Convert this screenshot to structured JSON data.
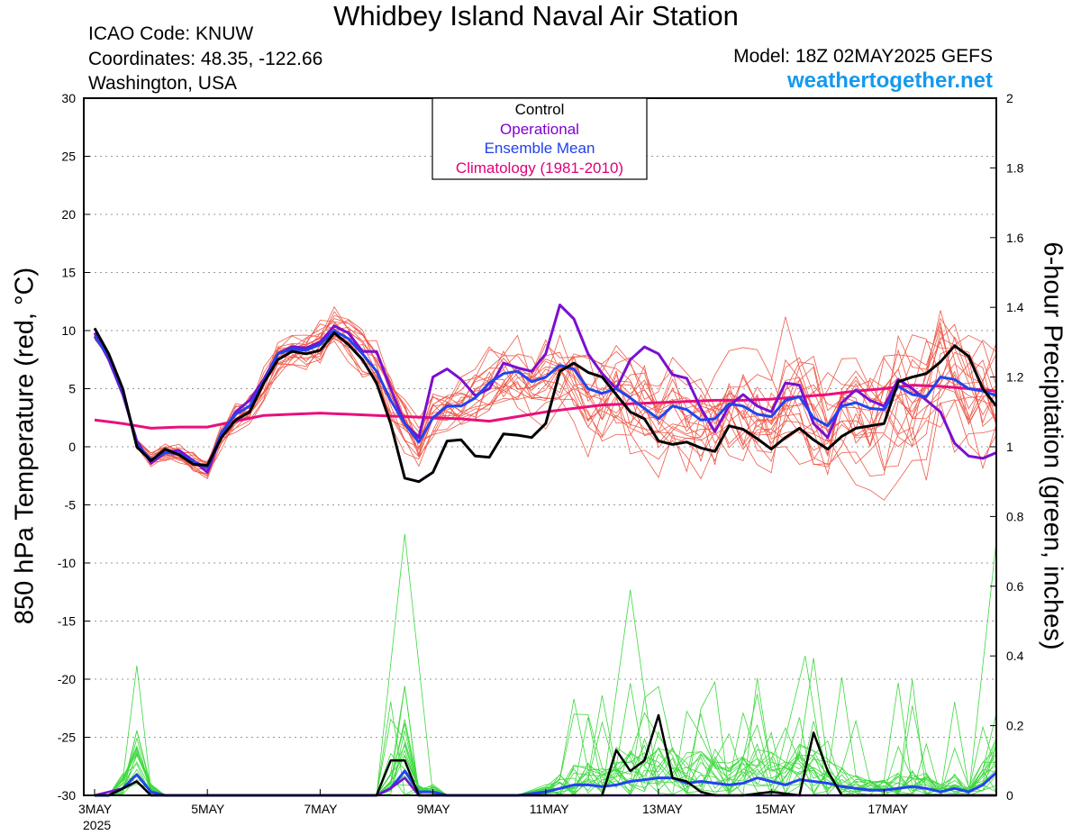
{
  "header": {
    "title": "Whidbey Island Naval Air Station",
    "icao": "ICAO Code: KNUW",
    "coords": "Coordinates: 48.35, -122.66",
    "region": "Washington, USA",
    "model": "Model: 18Z 02MAY2025 GEFS",
    "site": "weathertogether.net"
  },
  "chart_data": {
    "type": "line",
    "ylabel_left": "850 hPa Temperature (red, °C)",
    "ylabel_right": "6-hour Precipitation (green, inches)",
    "ylim_left": [
      -30,
      30
    ],
    "ylim_right": [
      0,
      2
    ],
    "yticks_left": [
      30,
      25,
      20,
      15,
      10,
      5,
      0,
      -5,
      -10,
      -15,
      -20,
      -25,
      -30
    ],
    "yticks_right": [
      2,
      1.8,
      1.6,
      1.4,
      1.2,
      1,
      0.8,
      0.6,
      0.4,
      0.2,
      0
    ],
    "xlim_days": [
      0,
      15.5
    ],
    "x_ticks": [
      {
        "day": 0,
        "label": "3MAY",
        "sub": "2025"
      },
      {
        "day": 2,
        "label": "5MAY",
        "sub": ""
      },
      {
        "day": 4,
        "label": "7MAY",
        "sub": ""
      },
      {
        "day": 6,
        "label": "9MAY",
        "sub": ""
      },
      {
        "day": 8,
        "label": "11MAY",
        "sub": ""
      },
      {
        "day": 10,
        "label": "13MAY",
        "sub": ""
      },
      {
        "day": 12,
        "label": "15MAY",
        "sub": ""
      },
      {
        "day": 14,
        "label": "17MAY",
        "sub": ""
      }
    ],
    "grid": true,
    "legend": {
      "position": "top-center",
      "entries": [
        {
          "label": "Control",
          "color": "#000000"
        },
        {
          "label": "Operational",
          "color": "#8000d0"
        },
        {
          "label": "Ensemble Mean",
          "color": "#2040ee"
        },
        {
          "label": "Climatology (1981-2010)",
          "color": "#e0007a"
        }
      ]
    },
    "colors": {
      "control": "#000000",
      "operational": "#7a10d0",
      "mean": "#2244ee",
      "climatology": "#e8107c",
      "members_temp": "#ee5a4a",
      "members_precip": "#3ed83e"
    },
    "temperature": {
      "control": [
        [
          0,
          10.2
        ],
        [
          0.25,
          8
        ],
        [
          0.5,
          5
        ],
        [
          0.75,
          0
        ],
        [
          1,
          -1.2
        ],
        [
          1.25,
          -0.2
        ],
        [
          1.5,
          -0.7
        ],
        [
          1.75,
          -1.5
        ],
        [
          2,
          -1.6
        ],
        [
          2.25,
          0.8
        ],
        [
          2.5,
          2.3
        ],
        [
          2.75,
          3
        ],
        [
          3,
          5.5
        ],
        [
          3.25,
          7.5
        ],
        [
          3.5,
          8.2
        ],
        [
          3.75,
          8
        ],
        [
          4,
          8.3
        ],
        [
          4.25,
          9.8
        ],
        [
          4.5,
          8.8
        ],
        [
          4.75,
          7.5
        ],
        [
          5,
          5.5
        ],
        [
          5.25,
          2
        ],
        [
          5.5,
          -2.7
        ],
        [
          5.75,
          -3
        ],
        [
          6,
          -2.2
        ],
        [
          6.25,
          0.5
        ],
        [
          6.5,
          0.6
        ],
        [
          6.75,
          -0.8
        ],
        [
          7,
          -0.9
        ],
        [
          7.25,
          1.1
        ],
        [
          7.5,
          1
        ],
        [
          7.75,
          0.8
        ],
        [
          8,
          2
        ],
        [
          8.25,
          6.5
        ],
        [
          8.5,
          7.2
        ],
        [
          8.75,
          6.4
        ],
        [
          9,
          6
        ],
        [
          9.25,
          4.5
        ],
        [
          9.5,
          3
        ],
        [
          9.75,
          2.4
        ],
        [
          10,
          0.5
        ],
        [
          10.25,
          0.2
        ],
        [
          10.5,
          0.4
        ],
        [
          10.75,
          -0.1
        ],
        [
          11,
          -0.4
        ],
        [
          11.25,
          1.8
        ],
        [
          11.5,
          1.5
        ],
        [
          11.75,
          0.7
        ],
        [
          12,
          -0.2
        ],
        [
          12.25,
          0.8
        ],
        [
          12.5,
          1.6
        ],
        [
          12.75,
          0.6
        ],
        [
          13,
          -0.2
        ],
        [
          13.25,
          0.9
        ],
        [
          13.5,
          1.6
        ],
        [
          13.75,
          1.8
        ],
        [
          14,
          2
        ],
        [
          14.25,
          5.6
        ],
        [
          14.5,
          6
        ],
        [
          14.75,
          6.3
        ],
        [
          15,
          7.3
        ],
        [
          15.25,
          8.7
        ],
        [
          15.5,
          7.8
        ],
        [
          15.75,
          5
        ],
        [
          16,
          3.5
        ]
      ],
      "operational": [
        [
          0,
          9.8
        ],
        [
          0.25,
          7.5
        ],
        [
          0.5,
          4.5
        ],
        [
          0.75,
          0.5
        ],
        [
          1,
          -1.4
        ],
        [
          1.25,
          -0.5
        ],
        [
          1.5,
          -0.3
        ],
        [
          1.75,
          -1.2
        ],
        [
          2,
          -2.2
        ],
        [
          2.25,
          1
        ],
        [
          2.5,
          3
        ],
        [
          2.75,
          4
        ],
        [
          3,
          5.8
        ],
        [
          3.25,
          8
        ],
        [
          3.5,
          8.6
        ],
        [
          3.75,
          8.5
        ],
        [
          4,
          9
        ],
        [
          4.25,
          10.4
        ],
        [
          4.5,
          9.8
        ],
        [
          4.75,
          8.2
        ],
        [
          5,
          8.2
        ],
        [
          5.25,
          5
        ],
        [
          5.5,
          2
        ],
        [
          5.75,
          0.8
        ],
        [
          6,
          6
        ],
        [
          6.25,
          6.7
        ],
        [
          6.5,
          5.8
        ],
        [
          6.75,
          4.4
        ],
        [
          7,
          5
        ],
        [
          7.25,
          7.2
        ],
        [
          7.5,
          6.8
        ],
        [
          7.75,
          6.5
        ],
        [
          8,
          8
        ],
        [
          8.25,
          12.2
        ],
        [
          8.5,
          11
        ],
        [
          8.75,
          8
        ],
        [
          9,
          6.3
        ],
        [
          9.25,
          5
        ],
        [
          9.5,
          7.5
        ],
        [
          9.75,
          8.6
        ],
        [
          10,
          8
        ],
        [
          10.25,
          6.2
        ],
        [
          10.5,
          5.9
        ],
        [
          10.75,
          3.3
        ],
        [
          11,
          1.3
        ],
        [
          11.25,
          3.5
        ],
        [
          11.5,
          4.5
        ],
        [
          11.75,
          3.5
        ],
        [
          12,
          3
        ],
        [
          12.25,
          5.5
        ],
        [
          12.5,
          5.3
        ],
        [
          12.75,
          2
        ],
        [
          13,
          0.8
        ],
        [
          13.25,
          3.8
        ],
        [
          13.5,
          4.9
        ],
        [
          13.75,
          4
        ],
        [
          14,
          3.5
        ],
        [
          14.25,
          5.8
        ],
        [
          14.5,
          5
        ],
        [
          14.75,
          4
        ],
        [
          15,
          3
        ],
        [
          15.25,
          0.3
        ],
        [
          15.5,
          -0.8
        ],
        [
          15.75,
          -1
        ],
        [
          16,
          -0.5
        ]
      ],
      "mean": [
        [
          0,
          9.5
        ],
        [
          0.25,
          7.8
        ],
        [
          0.5,
          4.8
        ],
        [
          0.75,
          0.2
        ],
        [
          1,
          -1.1
        ],
        [
          1.25,
          -0.5
        ],
        [
          1.5,
          -0.6
        ],
        [
          1.75,
          -1.3
        ],
        [
          2,
          -1.8
        ],
        [
          2.25,
          1.2
        ],
        [
          2.5,
          2.8
        ],
        [
          2.75,
          3.5
        ],
        [
          3,
          5.6
        ],
        [
          3.25,
          8
        ],
        [
          3.5,
          8.4
        ],
        [
          3.75,
          8.3
        ],
        [
          4,
          8.8
        ],
        [
          4.25,
          10
        ],
        [
          4.5,
          9.3
        ],
        [
          4.75,
          8
        ],
        [
          5,
          6.5
        ],
        [
          5.25,
          4
        ],
        [
          5.5,
          2
        ],
        [
          5.75,
          0.4
        ],
        [
          6,
          2.5
        ],
        [
          6.25,
          3.5
        ],
        [
          6.5,
          3.5
        ],
        [
          6.75,
          4.2
        ],
        [
          7,
          5.5
        ],
        [
          7.25,
          6.3
        ],
        [
          7.5,
          6.5
        ],
        [
          7.75,
          5.6
        ],
        [
          8,
          6
        ],
        [
          8.25,
          7
        ],
        [
          8.5,
          6.7
        ],
        [
          8.75,
          5
        ],
        [
          9,
          4.6
        ],
        [
          9.25,
          5
        ],
        [
          9.5,
          4.2
        ],
        [
          9.75,
          3.3
        ],
        [
          10,
          2.4
        ],
        [
          10.25,
          3.5
        ],
        [
          10.5,
          3.2
        ],
        [
          10.75,
          2.3
        ],
        [
          11,
          2.4
        ],
        [
          11.25,
          3.7
        ],
        [
          11.5,
          3.5
        ],
        [
          11.75,
          2.8
        ],
        [
          12,
          2.6
        ],
        [
          12.25,
          4
        ],
        [
          12.5,
          4.3
        ],
        [
          12.75,
          2.5
        ],
        [
          13,
          1.8
        ],
        [
          13.25,
          3.5
        ],
        [
          13.5,
          3.8
        ],
        [
          13.75,
          3.3
        ],
        [
          14,
          3.2
        ],
        [
          14.25,
          5.2
        ],
        [
          14.5,
          4.5
        ],
        [
          14.75,
          4.3
        ],
        [
          15,
          6
        ],
        [
          15.25,
          5.8
        ],
        [
          15.5,
          5
        ],
        [
          15.75,
          4.8
        ],
        [
          16,
          4.4
        ]
      ],
      "climatology": [
        [
          0,
          2.3
        ],
        [
          0.5,
          2
        ],
        [
          1,
          1.6
        ],
        [
          1.5,
          1.7
        ],
        [
          2,
          1.7
        ],
        [
          2.5,
          2.2
        ],
        [
          3,
          2.7
        ],
        [
          3.5,
          2.8
        ],
        [
          4,
          2.9
        ],
        [
          4.5,
          2.8
        ],
        [
          5,
          2.7
        ],
        [
          5.5,
          2.6
        ],
        [
          6,
          2.5
        ],
        [
          6.5,
          2.4
        ],
        [
          7,
          2.2
        ],
        [
          7.5,
          2.6
        ],
        [
          8,
          3
        ],
        [
          8.5,
          3.3
        ],
        [
          9,
          3.6
        ],
        [
          9.5,
          3.7
        ],
        [
          10,
          3.8
        ],
        [
          10.5,
          3.9
        ],
        [
          11,
          4
        ],
        [
          11.5,
          4
        ],
        [
          12,
          4.1
        ],
        [
          12.5,
          4.3
        ],
        [
          13,
          4.5
        ],
        [
          13.5,
          4.8
        ],
        [
          14,
          5
        ],
        [
          14.5,
          5.3
        ],
        [
          15,
          5.2
        ],
        [
          15.5,
          5
        ],
        [
          16,
          4.8
        ]
      ]
    },
    "precipitation": {
      "control": [
        [
          0,
          0
        ],
        [
          0.25,
          0
        ],
        [
          0.5,
          0.02
        ],
        [
          0.75,
          0.04
        ],
        [
          1,
          0
        ],
        [
          1.25,
          0
        ],
        [
          2,
          0
        ],
        [
          4,
          0
        ],
        [
          5,
          0
        ],
        [
          5.25,
          0.1
        ],
        [
          5.5,
          0.1
        ],
        [
          5.75,
          0
        ],
        [
          6,
          0
        ],
        [
          8,
          0
        ],
        [
          8.5,
          0
        ],
        [
          8.75,
          0
        ],
        [
          9,
          0
        ],
        [
          9.25,
          0.13
        ],
        [
          9.5,
          0.07
        ],
        [
          9.75,
          0.1
        ],
        [
          10,
          0.23
        ],
        [
          10.25,
          0.05
        ],
        [
          10.5,
          0.04
        ],
        [
          10.75,
          0.01
        ],
        [
          11,
          0
        ],
        [
          11.5,
          0
        ],
        [
          12,
          0.01
        ],
        [
          12.5,
          0
        ],
        [
          12.75,
          0.18
        ],
        [
          13,
          0.07
        ],
        [
          13.25,
          0
        ],
        [
          13.5,
          0
        ],
        [
          14,
          0
        ],
        [
          15,
          0
        ],
        [
          16,
          0
        ]
      ],
      "operational": [
        [
          0,
          0
        ],
        [
          0.5,
          0.02
        ],
        [
          0.75,
          0.04
        ],
        [
          1,
          0
        ],
        [
          5,
          0
        ],
        [
          5.25,
          0.02
        ],
        [
          5.5,
          0.05
        ],
        [
          5.75,
          0
        ],
        [
          6,
          0
        ],
        [
          16,
          0
        ]
      ],
      "mean": [
        [
          0,
          0
        ],
        [
          0.25,
          0
        ],
        [
          0.5,
          0.02
        ],
        [
          0.75,
          0.06
        ],
        [
          1,
          0.01
        ],
        [
          1.25,
          0
        ],
        [
          2,
          0
        ],
        [
          5,
          0
        ],
        [
          5.25,
          0.02
        ],
        [
          5.5,
          0.07
        ],
        [
          5.75,
          0.01
        ],
        [
          6,
          0.01
        ],
        [
          6.25,
          0
        ],
        [
          7.5,
          0
        ],
        [
          8,
          0.01
        ],
        [
          8.25,
          0.02
        ],
        [
          8.5,
          0.03
        ],
        [
          8.75,
          0.03
        ],
        [
          9,
          0.025
        ],
        [
          9.25,
          0.03
        ],
        [
          9.5,
          0.04
        ],
        [
          9.75,
          0.045
        ],
        [
          10,
          0.05
        ],
        [
          10.25,
          0.05
        ],
        [
          10.5,
          0.035
        ],
        [
          10.75,
          0.04
        ],
        [
          11,
          0.035
        ],
        [
          11.25,
          0.03
        ],
        [
          11.5,
          0.035
        ],
        [
          11.75,
          0.05
        ],
        [
          12,
          0.04
        ],
        [
          12.25,
          0.03
        ],
        [
          12.5,
          0.045
        ],
        [
          12.75,
          0.04
        ],
        [
          13,
          0.035
        ],
        [
          13.25,
          0.025
        ],
        [
          13.5,
          0.02
        ],
        [
          13.75,
          0.015
        ],
        [
          14,
          0.015
        ],
        [
          14.25,
          0.02
        ],
        [
          14.5,
          0.025
        ],
        [
          14.75,
          0.02
        ],
        [
          15,
          0.01
        ],
        [
          15.25,
          0.02
        ],
        [
          15.5,
          0.01
        ],
        [
          15.75,
          0.03
        ],
        [
          16,
          0.065
        ]
      ]
    }
  }
}
